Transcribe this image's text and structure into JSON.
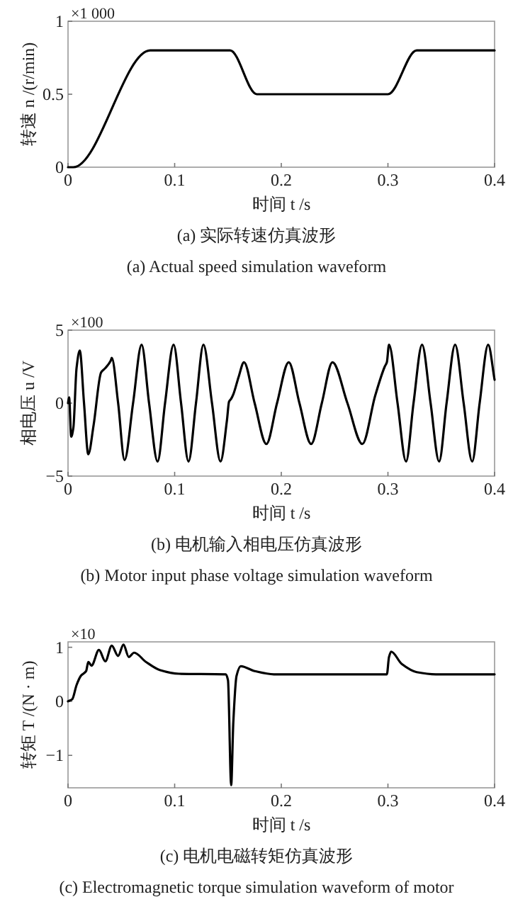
{
  "chart_data": [
    {
      "type": "line",
      "xlabel": "时间 t /s",
      "ylabel": "转速 n /(r/min)",
      "color": "#000000",
      "x": [
        0,
        0.005,
        0.077,
        0.152,
        0.177,
        0.3,
        0.327,
        0.4
      ],
      "values": [
        0,
        0,
        0.8,
        0.8,
        0.5,
        0.5,
        0.8,
        0.8
      ],
      "xlim": [
        0,
        0.4
      ],
      "ylim": [
        0,
        1
      ],
      "xticks": [
        0,
        0.1,
        0.2,
        0.3,
        0.4
      ],
      "yticks": [
        0,
        0.5,
        1
      ],
      "annotations": [
        "×1 000",
        "(a) 实际转速仿真波形",
        "(a) Actual speed simulation waveform"
      ]
    },
    {
      "type": "line",
      "xlabel": "时间 t /s",
      "ylabel": "相电压 u /V",
      "color": "#000000",
      "x": [
        0,
        0.001,
        0.003,
        0.005,
        0.008,
        0.011,
        0.015,
        0.019,
        0.024,
        0.031,
        0.035,
        0.04,
        0.041,
        0.047,
        0.053,
        0.061,
        0.069,
        0.076,
        0.084,
        0.091,
        0.099,
        0.106,
        0.113,
        0.12,
        0.127,
        0.135,
        0.143,
        0.149,
        0.151,
        0.153,
        0.155,
        0.16,
        0.165,
        0.175,
        0.186,
        0.196,
        0.207,
        0.217,
        0.228,
        0.238,
        0.248,
        0.262,
        0.276,
        0.288,
        0.297,
        0.299,
        0.301,
        0.309,
        0.317,
        0.324,
        0.332,
        0.34,
        0.348,
        0.355,
        0.363,
        0.371,
        0.379,
        0.386,
        0.394,
        0.4
      ],
      "values": [
        0,
        0.4,
        -2.3,
        -1.7,
        2.4,
        3.6,
        0,
        -3.5,
        -1.5,
        2.1,
        2.4,
        2.9,
        3.1,
        0,
        -3.9,
        0,
        4.0,
        0,
        -4.0,
        0,
        4.0,
        0,
        -4.0,
        0,
        4.0,
        0,
        -4.0,
        -1.2,
        0.1,
        0.3,
        0.6,
        1.8,
        2.8,
        0,
        -2.8,
        0,
        2.8,
        0,
        -2.8,
        0,
        2.8,
        0,
        -2.8,
        0.5,
        2.5,
        2.8,
        4.0,
        0,
        -4.0,
        0,
        4.0,
        0,
        -4.0,
        0,
        4.0,
        0,
        -4.0,
        0,
        4.0,
        1.6
      ],
      "xlim": [
        0,
        0.4
      ],
      "ylim": [
        -5,
        5
      ],
      "xticks": [
        0,
        0.1,
        0.2,
        0.3,
        0.4
      ],
      "yticks": [
        {
          "value": -5,
          "label": "−5"
        },
        0,
        5
      ],
      "annotations": [
        "×100",
        "(b) 电机输入相电压仿真波形",
        "(b) Motor input phase voltage simulation waveform"
      ]
    },
    {
      "type": "line",
      "xlabel": "时间 t /s",
      "ylabel": "转矩 T /(N · m)",
      "color": "#000000",
      "x": [
        0,
        0.004,
        0.008,
        0.012,
        0.017,
        0.019,
        0.022,
        0.029,
        0.035,
        0.041,
        0.047,
        0.052,
        0.057,
        0.062,
        0.073,
        0.086,
        0.104,
        0.148,
        0.15,
        0.153,
        0.155,
        0.158,
        0.162,
        0.175,
        0.193,
        0.299,
        0.301,
        0.303,
        0.313,
        0.327,
        0.345,
        0.4
      ],
      "values": [
        0,
        0.04,
        0.3,
        0.47,
        0.56,
        0.73,
        0.66,
        0.95,
        0.74,
        1.03,
        0.84,
        1.05,
        0.82,
        0.9,
        0.73,
        0.58,
        0.51,
        0.5,
        0.39,
        -1.55,
        -0.39,
        0.47,
        0.65,
        0.56,
        0.5,
        0.5,
        0.82,
        0.92,
        0.69,
        0.54,
        0.5,
        0.5
      ],
      "xlim": [
        0,
        0.4
      ],
      "ylim": [
        -1.6,
        1.1
      ],
      "xticks": [
        0,
        0.1,
        0.2,
        0.3,
        0.4
      ],
      "yticks": [
        {
          "value": -1,
          "label": "−1"
        },
        0,
        1
      ],
      "annotations": [
        "×10",
        "(c) 电机电磁转矩仿真波形",
        "(c) Electromagnetic torque simulation waveform of motor"
      ]
    }
  ]
}
